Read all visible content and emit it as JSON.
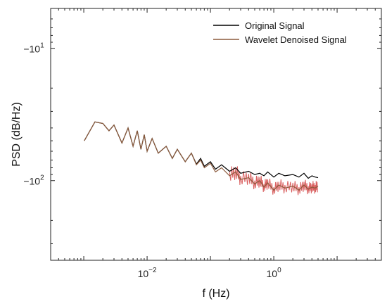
{
  "chart_data": {
    "type": "line",
    "title": "",
    "xlabel": "f (Hz)",
    "ylabel": "PSD (dB/Hz)",
    "x_scale": "log",
    "y_scale": "log (negative)",
    "xlim": [
      0.0003,
      50
    ],
    "ylim": [
      -5,
      -400
    ],
    "x_ticks": [
      {
        "value": 0.01,
        "base": "10",
        "exp": "−2"
      },
      {
        "value": 1,
        "base": "10",
        "exp": "0"
      }
    ],
    "y_ticks": [
      {
        "value": -10,
        "base": "−10",
        "exp": "1"
      },
      {
        "value": -100,
        "base": "−10",
        "exp": "2"
      }
    ],
    "grid": false,
    "legend_position": "top-right",
    "series": [
      {
        "name": "Original Signal",
        "color": "#000000",
        "x": [
          0.00102,
          0.0015,
          0.002,
          0.0025,
          0.003,
          0.004,
          0.005,
          0.006,
          0.007,
          0.008,
          0.009,
          0.01,
          0.012,
          0.015,
          0.02,
          0.025,
          0.03,
          0.04,
          0.05,
          0.06,
          0.07,
          0.08,
          0.1,
          0.12,
          0.15,
          0.2,
          0.25,
          0.3,
          0.4,
          0.5,
          0.6,
          0.7,
          0.8,
          1.0,
          1.2,
          1.5,
          2.0,
          2.5,
          3.0,
          3.5,
          4.0,
          4.5,
          5.0
        ],
        "y": [
          -50,
          -36,
          -37,
          -42,
          -38,
          -52,
          -40,
          -55,
          -42,
          -58,
          -45,
          -60,
          -48,
          -62,
          -55,
          -68,
          -58,
          -72,
          -62,
          -75,
          -68,
          -78,
          -72,
          -82,
          -76,
          -85,
          -80,
          -88,
          -85,
          -90,
          -88,
          -92,
          -86,
          -94,
          -88,
          -92,
          -90,
          -94,
          -88,
          -96,
          -92,
          -94,
          -95
        ]
      },
      {
        "name": "Wavelet Denoised Signal",
        "color": "#8b5a3c",
        "x": [
          0.00102,
          0.0015,
          0.002,
          0.0025,
          0.003,
          0.004,
          0.005,
          0.006,
          0.007,
          0.008,
          0.009,
          0.01,
          0.012,
          0.015,
          0.02,
          0.025,
          0.03,
          0.04,
          0.05,
          0.06,
          0.07,
          0.08,
          0.1,
          0.12,
          0.15,
          0.2,
          0.25,
          0.3,
          0.4,
          0.5,
          0.6,
          0.7,
          0.8,
          1.0,
          1.2,
          1.5,
          2.0,
          2.5,
          3.0,
          3.5,
          4.0,
          4.5,
          5.0
        ],
        "y": [
          -50,
          -36,
          -37,
          -42,
          -38,
          -52,
          -40,
          -55,
          -42,
          -58,
          -45,
          -60,
          -48,
          -62,
          -55,
          -68,
          -58,
          -72,
          -62,
          -76,
          -70,
          -80,
          -74,
          -86,
          -80,
          -92,
          -86,
          -98,
          -95,
          -106,
          -100,
          -112,
          -104,
          -118,
          -108,
          -114,
          -110,
          -118,
          -108,
          -116,
          -112,
          -114,
          -110
        ]
      }
    ]
  }
}
